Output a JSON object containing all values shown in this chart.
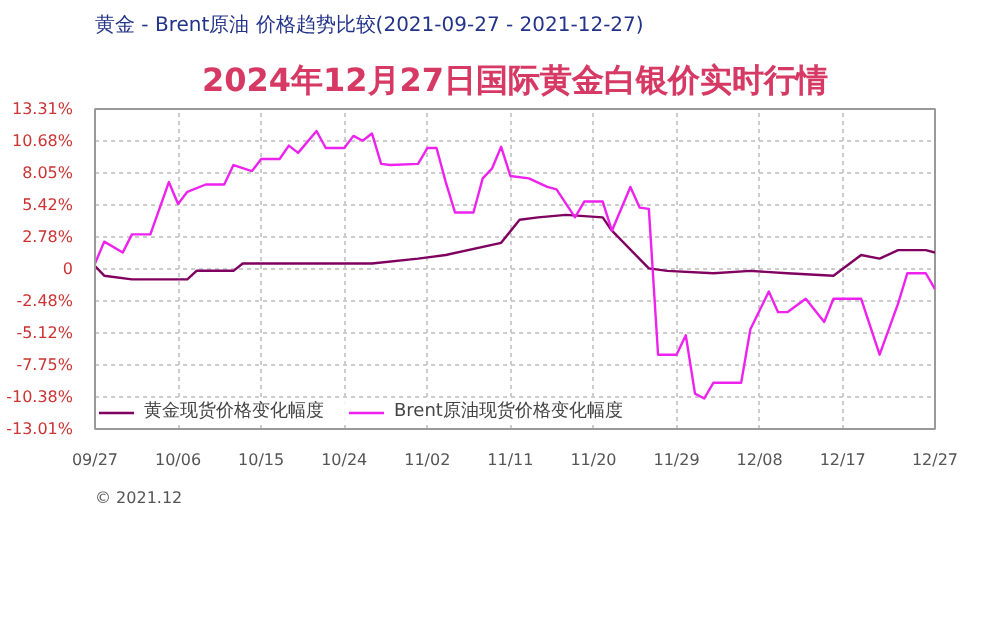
{
  "chart_data": {
    "type": "line",
    "title": "黄金 - Brent原油 价格趋势比较(2021-09-27 - 2021-12-27)",
    "annotations": [
      "2024年12月27日国际黄金白银价实时行情",
      "© 2021.12"
    ],
    "series": [
      {
        "name": "黄金现货价格变化幅度",
        "color": "#800060",
        "x": [
          "2021-09-27",
          "2021-09-28",
          "2021-10-01",
          "2021-10-07",
          "2021-10-08",
          "2021-10-12",
          "2021-10-13",
          "2021-10-25",
          "2021-10-27",
          "2021-11-01",
          "2021-11-04",
          "2021-11-10",
          "2021-11-12",
          "2021-11-14",
          "2021-11-17",
          "2021-11-21",
          "2021-11-22",
          "2021-11-26",
          "2021-11-28",
          "2021-12-03",
          "2021-12-07",
          "2021-12-11",
          "2021-12-16",
          "2021-12-19",
          "2021-12-21",
          "2021-12-23",
          "2021-12-26",
          "2021-12-27"
        ],
        "values": [
          0.4,
          -0.4,
          -0.7,
          -0.7,
          0.0,
          0.0,
          0.6,
          0.6,
          0.6,
          1.0,
          1.3,
          2.3,
          4.2,
          4.4,
          4.6,
          4.4,
          3.3,
          0.2,
          0.0,
          -0.2,
          0.0,
          -0.2,
          -0.4,
          1.3,
          1.0,
          1.7,
          1.7,
          1.5
        ]
      },
      {
        "name": "Brent原油现货价格变化幅度",
        "color": "#ee22ee",
        "x": [
          "2021-09-27",
          "2021-09-28",
          "2021-09-30",
          "2021-10-01",
          "2021-10-03",
          "2021-10-05",
          "2021-10-06",
          "2021-10-07",
          "2021-10-09",
          "2021-10-11",
          "2021-10-12",
          "2021-10-14",
          "2021-10-15",
          "2021-10-17",
          "2021-10-18",
          "2021-10-19",
          "2021-10-21",
          "2021-10-22",
          "2021-10-24",
          "2021-10-25",
          "2021-10-26",
          "2021-10-27",
          "2021-10-28",
          "2021-10-29",
          "2021-11-01",
          "2021-11-02",
          "2021-11-03",
          "2021-11-04",
          "2021-11-05",
          "2021-11-07",
          "2021-11-08",
          "2021-11-09",
          "2021-11-10",
          "2021-11-11",
          "2021-11-13",
          "2021-11-15",
          "2021-11-16",
          "2021-11-18",
          "2021-11-19",
          "2021-11-21",
          "2021-11-22",
          "2021-11-24",
          "2021-11-25",
          "2021-11-26",
          "2021-11-27",
          "2021-11-29",
          "2021-11-30",
          "2021-12-01",
          "2021-12-02",
          "2021-12-03",
          "2021-12-06",
          "2021-12-07",
          "2021-12-09",
          "2021-12-10",
          "2021-12-11",
          "2021-12-13",
          "2021-12-15",
          "2021-12-16",
          "2021-12-19",
          "2021-12-21",
          "2021-12-23",
          "2021-12-24",
          "2021-12-26",
          "2021-12-27"
        ],
        "values": [
          0.6,
          2.4,
          1.5,
          3.0,
          3.0,
          7.3,
          5.5,
          6.5,
          7.1,
          7.1,
          8.7,
          8.2,
          9.2,
          9.2,
          10.3,
          9.7,
          11.5,
          10.1,
          10.1,
          11.1,
          10.7,
          11.3,
          8.8,
          8.7,
          8.8,
          10.1,
          10.1,
          7.3,
          4.8,
          4.8,
          7.6,
          8.4,
          10.2,
          7.8,
          7.6,
          6.9,
          6.7,
          4.4,
          5.7,
          5.7,
          3.3,
          6.9,
          5.2,
          5.1,
          -6.9,
          -6.9,
          -5.3,
          -10.1,
          -10.5,
          -9.2,
          -9.2,
          -4.8,
          -1.7,
          -3.4,
          -3.4,
          -2.3,
          -4.2,
          -2.3,
          -2.3,
          -6.9,
          -2.7,
          -0.2,
          -0.2,
          -1.5
        ]
      }
    ],
    "xlim": [
      "2021-09-27",
      "2021-12-27"
    ],
    "xticks": [
      {
        "value": "2021-09-27",
        "label": "09/27"
      },
      {
        "value": "2021-10-06",
        "label": "10/06"
      },
      {
        "value": "2021-10-15",
        "label": "10/15"
      },
      {
        "value": "2021-10-24",
        "label": "10/24"
      },
      {
        "value": "2021-11-02",
        "label": "11/02"
      },
      {
        "value": "2021-11-11",
        "label": "11/11"
      },
      {
        "value": "2021-11-20",
        "label": "11/20"
      },
      {
        "value": "2021-11-29",
        "label": "11/29"
      },
      {
        "value": "2021-12-08",
        "label": "12/08"
      },
      {
        "value": "2021-12-17",
        "label": "12/17"
      },
      {
        "value": "2021-12-27",
        "label": "12/27"
      }
    ],
    "ylim": [
      -13.01,
      13.31
    ],
    "yticks": [
      {
        "value": -13.01,
        "label": "-13.01%"
      },
      {
        "value": -10.38,
        "label": "-10.38%"
      },
      {
        "value": -7.75,
        "label": "-7.75%"
      },
      {
        "value": -5.12,
        "label": "-5.12%"
      },
      {
        "value": -2.48,
        "label": "-2.48%"
      },
      {
        "value": 0.15,
        "label": "0"
      },
      {
        "value": 2.78,
        "label": "2.78%"
      },
      {
        "value": 5.42,
        "label": "5.42%"
      },
      {
        "value": 8.05,
        "label": "8.05%"
      },
      {
        "value": 10.68,
        "label": "10.68%"
      },
      {
        "value": 13.31,
        "label": "13.31%"
      }
    ],
    "grid": true,
    "legend": "bottom left",
    "line_style": "solid",
    "marker": "none"
  }
}
